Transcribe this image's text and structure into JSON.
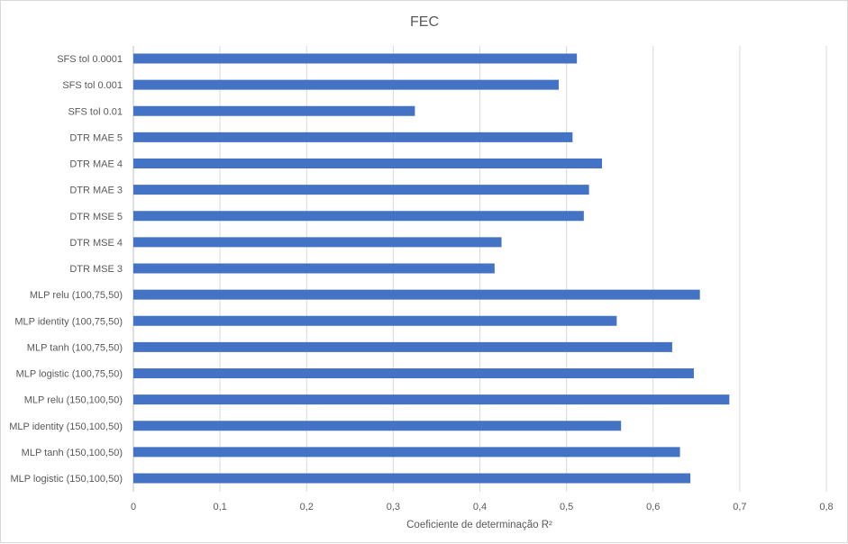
{
  "chart_data": {
    "type": "bar",
    "orientation": "horizontal",
    "title": "FEC",
    "xlabel": "Coeficiente de determinação R²",
    "ylabel": "",
    "xlim": [
      0,
      0.8
    ],
    "x_ticks": [
      "0",
      "0,1",
      "0,2",
      "0,3",
      "0,4",
      "0,5",
      "0,6",
      "0,7",
      "0,8"
    ],
    "grid": true,
    "legend": "none",
    "bar_color": "#4472c4",
    "categories": [
      "SFS tol 0.0001",
      "SFS tol 0.001",
      "SFS tol 0.01",
      "DTR MAE 5",
      "DTR MAE 4",
      "DTR MAE 3",
      "DTR MSE 5",
      "DTR MSE 4",
      "DTR MSE 3",
      "MLP relu (100,75,50)",
      "MLP identity (100,75,50)",
      "MLP tanh (100,75,50)",
      "MLP logistic (100,75,50)",
      "MLP relu (150,100,50)",
      "MLP identity (150,100,50)",
      "MLP tanh (150,100,50)",
      "MLP logistic (150,100,50)"
    ],
    "values": [
      0.512,
      0.491,
      0.325,
      0.507,
      0.541,
      0.526,
      0.52,
      0.425,
      0.417,
      0.654,
      0.558,
      0.622,
      0.647,
      0.688,
      0.563,
      0.631,
      0.643
    ]
  }
}
